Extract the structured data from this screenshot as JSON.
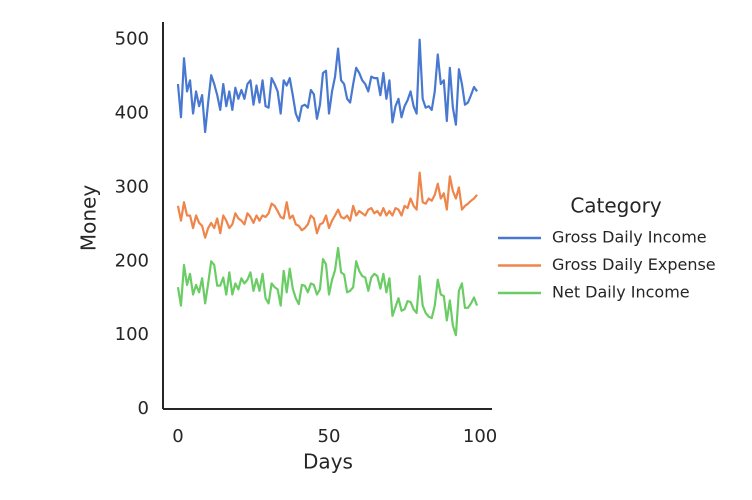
{
  "chart_data": {
    "type": "line",
    "xlabel": "Days",
    "ylabel": "Money",
    "legend_title": "Category",
    "legend": "right",
    "x": [
      0,
      1,
      2,
      3,
      4,
      5,
      6,
      7,
      8,
      9,
      10,
      11,
      12,
      13,
      14,
      15,
      16,
      17,
      18,
      19,
      20,
      21,
      22,
      23,
      24,
      25,
      26,
      27,
      28,
      29,
      30,
      31,
      32,
      33,
      34,
      35,
      36,
      37,
      38,
      39,
      40,
      41,
      42,
      43,
      44,
      45,
      46,
      47,
      48,
      49,
      50,
      51,
      52,
      53,
      54,
      55,
      56,
      57,
      58,
      59,
      60,
      61,
      62,
      63,
      64,
      65,
      66,
      67,
      68,
      69,
      70,
      71,
      72,
      73,
      74,
      75,
      76,
      77,
      78,
      79,
      80,
      81,
      82,
      83,
      84,
      85,
      86,
      87,
      88,
      89,
      90,
      91,
      92,
      93,
      94,
      95,
      96,
      97,
      98,
      99
    ],
    "series": [
      {
        "name": "Gross Daily Income",
        "color": "#4878d0",
        "values": [
          440,
          395,
          475,
          430,
          445,
          400,
          430,
          410,
          425,
          375,
          415,
          452,
          440,
          425,
          405,
          440,
          410,
          430,
          405,
          435,
          420,
          432,
          420,
          440,
          445,
          412,
          438,
          415,
          445,
          410,
          408,
          448,
          440,
          430,
          400,
          445,
          438,
          448,
          425,
          400,
          390,
          410,
          412,
          408,
          432,
          426,
          393,
          412,
          455,
          458,
          400,
          430,
          450,
          488,
          445,
          440,
          420,
          415,
          440,
          462,
          455,
          445,
          440,
          430,
          450,
          448,
          448,
          425,
          455,
          420,
          445,
          388,
          410,
          420,
          395,
          410,
          418,
          430,
          410,
          400,
          500,
          420,
          408,
          410,
          405,
          430,
          480,
          440,
          445,
          390,
          462,
          408,
          385,
          460,
          440,
          412,
          415,
          425,
          436,
          430
        ]
      },
      {
        "name": "Gross Daily Expense",
        "color": "#ee854a",
        "values": [
          275,
          255,
          280,
          262,
          262,
          245,
          262,
          252,
          248,
          232,
          245,
          252,
          245,
          258,
          238,
          262,
          255,
          245,
          250,
          265,
          258,
          255,
          250,
          265,
          260,
          252,
          262,
          255,
          262,
          260,
          265,
          278,
          275,
          268,
          260,
          258,
          280,
          258,
          262,
          250,
          248,
          242,
          245,
          250,
          262,
          258,
          238,
          250,
          252,
          262,
          245,
          255,
          262,
          270,
          260,
          258,
          262,
          255,
          275,
          262,
          268,
          265,
          262,
          270,
          272,
          265,
          268,
          262,
          272,
          262,
          268,
          262,
          272,
          270,
          262,
          275,
          272,
          285,
          275,
          270,
          320,
          280,
          278,
          285,
          282,
          290,
          305,
          285,
          292,
          270,
          315,
          295,
          285,
          300,
          270,
          275,
          278,
          282,
          285,
          290
        ]
      },
      {
        "name": "Net Daily Income",
        "color": "#6acc64",
        "values": [
          165,
          140,
          195,
          168,
          183,
          155,
          168,
          158,
          177,
          143,
          170,
          200,
          195,
          167,
          167,
          178,
          155,
          185,
          155,
          170,
          162,
          177,
          170,
          175,
          185,
          160,
          176,
          160,
          183,
          150,
          143,
          170,
          165,
          162,
          140,
          187,
          158,
          190,
          163,
          150,
          142,
          168,
          167,
          158,
          170,
          168,
          155,
          162,
          203,
          196,
          155,
          175,
          188,
          218,
          185,
          182,
          158,
          160,
          165,
          200,
          187,
          180,
          178,
          160,
          178,
          183,
          180,
          163,
          183,
          158,
          177,
          126,
          138,
          150,
          133,
          135,
          146,
          145,
          135,
          130,
          180,
          140,
          130,
          125,
          123,
          140,
          175,
          155,
          153,
          120,
          147,
          113,
          100,
          160,
          170,
          137,
          137,
          143,
          151,
          140
        ]
      }
    ],
    "xlim": [
      -4.95,
      103.95
    ],
    "xticks": [
      0,
      50,
      100
    ],
    "ylim": [
      0,
      524
    ],
    "yticks": [
      0,
      100,
      200,
      300,
      400,
      500
    ]
  }
}
